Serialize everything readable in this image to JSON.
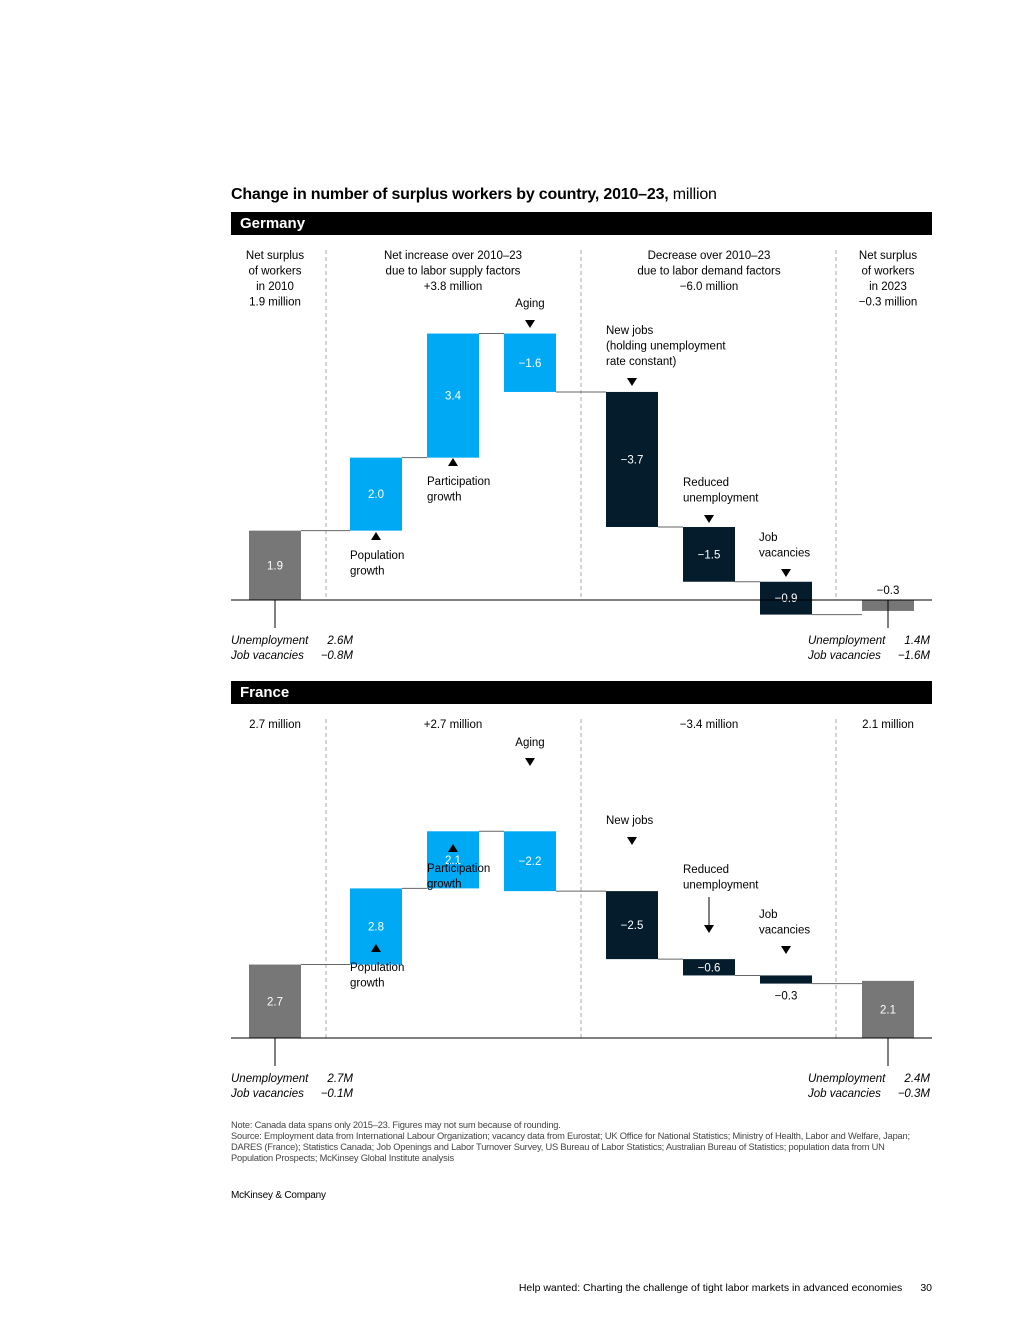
{
  "title": {
    "main": "Change in number of surplus workers by country, 2010–23,",
    "unit": "million"
  },
  "colors": {
    "gray": "#777777",
    "supply": "#00a9f4",
    "demand": "#051c2c",
    "banner": "#000000",
    "divider": "#aaaaaa"
  },
  "chart_data": [
    {
      "type": "waterfall",
      "country": "Germany",
      "section_headers": [
        "Net surplus\nof workers\nin 2010\n1.9 million",
        "Net increase over 2010–23\ndue to labor supply factors\n+3.8 million",
        "Decrease over 2010–23\ndue to labor demand factors\n−6.0 million",
        "Net surplus\nof workers\nin 2023\n−0.3 million"
      ],
      "steps": [
        {
          "label": "",
          "value": 1.9,
          "kind": "total",
          "value_label": "1.9"
        },
        {
          "label": "Population\ngrowth",
          "value": 2.0,
          "kind": "supply",
          "value_label": "2.0"
        },
        {
          "label": "Participation\ngrowth",
          "value": 3.4,
          "kind": "supply",
          "value_label": "3.4"
        },
        {
          "label": "Aging",
          "value": -1.6,
          "kind": "supply",
          "value_label": "−1.6"
        },
        {
          "label": "New jobs\n(holding unemployment\nrate constant)",
          "value": -3.7,
          "kind": "demand",
          "value_label": "−3.7"
        },
        {
          "label": "Reduced\nunemployment",
          "value": -1.5,
          "kind": "demand",
          "value_label": "−1.5"
        },
        {
          "label": "Job\nvacancies",
          "value": -0.9,
          "kind": "demand",
          "value_label": "−0.9"
        },
        {
          "label": "",
          "value": -0.3,
          "kind": "total",
          "value_label": "−0.3"
        }
      ],
      "footnote_left": [
        {
          "label": "Unemployment",
          "value": "2.6M"
        },
        {
          "label": "Job vacancies",
          "value": "−0.8M"
        }
      ],
      "footnote_right": [
        {
          "label": "Unemployment",
          "value": "1.4M"
        },
        {
          "label": "Job vacancies",
          "value": "−1.6M"
        }
      ]
    },
    {
      "type": "waterfall",
      "country": "France",
      "section_headers": [
        "2.7 million",
        "+2.7 million",
        "−3.4 million",
        "2.1 million"
      ],
      "steps": [
        {
          "label": "",
          "value": 2.7,
          "kind": "total",
          "value_label": "2.7"
        },
        {
          "label": "Population\ngrowth",
          "value": 2.8,
          "kind": "supply",
          "value_label": "2.8"
        },
        {
          "label": "Participation\ngrowth",
          "value": 2.1,
          "kind": "supply",
          "value_label": "2.1"
        },
        {
          "label": "Aging",
          "value": -2.2,
          "kind": "supply",
          "value_label": "−2.2"
        },
        {
          "label": "New jobs",
          "value": -2.5,
          "kind": "demand",
          "value_label": "−2.5"
        },
        {
          "label": "Reduced\nunemployment",
          "value": -0.6,
          "kind": "demand",
          "value_label": "−0.6"
        },
        {
          "label": "Job\nvacancies",
          "value": -0.3,
          "kind": "demand",
          "value_label": "−0.3"
        },
        {
          "label": "",
          "value": 2.1,
          "kind": "total",
          "value_label": "2.1"
        }
      ],
      "footnote_left": [
        {
          "label": "Unemployment",
          "value": "2.7M"
        },
        {
          "label": "Job vacancies",
          "value": "−0.1M"
        }
      ],
      "footnote_right": [
        {
          "label": "Unemployment",
          "value": "2.4M"
        },
        {
          "label": "Job vacancies",
          "value": "−0.3M"
        }
      ]
    }
  ],
  "note": "Note: Canada data spans only 2015–23. Figures may not sum because of rounding.",
  "source": "Source: Employment data from International Labour Organization; vacancy data from Eurostat; UK Office for National Statistics; Ministry of Health, Labor and Welfare, Japan; DARES (France); Statistics Canada; Job Openings and Labor Turnover Survey, US Bureau of Labor Statistics; Australian Bureau of Statistics; population data from UN Population Prospects; McKinsey Global Institute analysis",
  "brand": "McKinsey & Company",
  "footer": {
    "text": "Help wanted: Charting the challenge of tight labor markets in advanced economies",
    "page": "30"
  }
}
